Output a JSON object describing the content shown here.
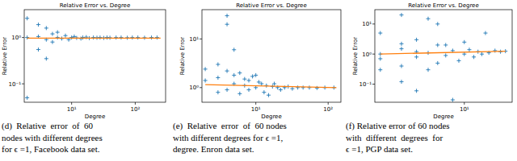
{
  "chart_data": [
    {
      "type": "scatter",
      "title": "Relative Error vs. Degree",
      "x_label": "Degree",
      "y_label": "Relative Error",
      "log": true,
      "grid": false,
      "xlim": [
        1.8,
        300
      ],
      "ylim": [
        0.04,
        4
      ],
      "xticks": [
        {
          "value": 10,
          "label": "10¹"
        },
        {
          "value": 100,
          "label": "10²"
        }
      ],
      "yticks": [
        {
          "value": 0.1,
          "label": "10⁻¹"
        },
        {
          "value": 1,
          "label": "10⁰"
        }
      ],
      "series": [
        {
          "type": "scatter",
          "marker": "+",
          "color": "#1f77b4",
          "x": [
            2,
            2,
            2,
            3,
            3,
            3,
            4,
            4,
            4,
            5,
            5,
            6,
            6,
            7,
            8,
            9,
            10,
            11,
            12,
            14,
            15,
            17,
            19,
            22,
            25,
            28,
            32,
            36,
            40,
            50,
            60,
            75,
            90,
            110,
            140,
            180,
            220
          ],
          "values": [
            2.6,
            0.05,
            1.0,
            1.9,
            0.55,
            1.05,
            1.6,
            0.35,
            0.9,
            1.2,
            0.8,
            1.0,
            1.3,
            0.95,
            1.1,
            0.9,
            1.0,
            1.05,
            0.98,
            0.95,
            1.0,
            1.02,
            0.97,
            1.0,
            0.99,
            1.0,
            0.98,
            1.0,
            0.99,
            1.0,
            1.0,
            0.99,
            1.0,
            1.0,
            0.99,
            1.0,
            1.0
          ]
        },
        {
          "type": "line",
          "color": "#ff7f0e",
          "x": [
            2,
            250
          ],
          "values": [
            0.97,
            0.97
          ]
        }
      ],
      "caption": [
        "(d)  Relative  error  of  60",
        "nodes with different degrees",
        "for ϵ =1, Facebook data set."
      ]
    },
    {
      "type": "scatter",
      "title": "Relative Error vs. Degree",
      "x_label": "Degree",
      "y_label": "Relative Error",
      "log": true,
      "grid": false,
      "xlim": [
        1.8,
        150
      ],
      "ylim": [
        0.5,
        40
      ],
      "xticks": [
        {
          "value": 10,
          "label": "10¹"
        },
        {
          "value": 100,
          "label": "10²"
        }
      ],
      "yticks": [
        {
          "value": 1,
          "label": "10⁰"
        },
        {
          "value": 10,
          "label": "10¹"
        }
      ],
      "series": [
        {
          "type": "scatter",
          "marker": "+",
          "color": "#1f77b4",
          "x": [
            2,
            2,
            3,
            3,
            3,
            4,
            4,
            4,
            4,
            5,
            5,
            5,
            6,
            6,
            7,
            7,
            8,
            8,
            9,
            10,
            10,
            11,
            12,
            13,
            14,
            15,
            17,
            18,
            20,
            22,
            25,
            28,
            32,
            38,
            45,
            55,
            70,
            90,
            120
          ],
          "values": [
            2.4,
            1.4,
            3.0,
            1.6,
            0.8,
            30,
            20,
            2.2,
            0.9,
            6.0,
            1.8,
            1.2,
            2.0,
            0.75,
            1.5,
            1.1,
            1.4,
            0.9,
            1.7,
            1.8,
            1.0,
            1.3,
            1.2,
            0.8,
            1.1,
            0.7,
            1.05,
            1.2,
            1.0,
            0.9,
            1.0,
            1.05,
            0.95,
            1.0,
            1.0,
            1.0,
            0.98,
            1.0,
            1.0
          ]
        },
        {
          "type": "line",
          "color": "#ff7f0e",
          "x": [
            2,
            130
          ],
          "values": [
            1.15,
            1.0
          ]
        }
      ],
      "caption": [
        "(e)  Relative  error  of  60 nodes",
        "with different degrees for ϵ =1,",
        "degree. Enron data set."
      ]
    },
    {
      "type": "scatter",
      "title": "Relative Error vs. Degree",
      "x_label": "Degree",
      "y_label": "Relative Error",
      "log": true,
      "grid": false,
      "xlim": [
        1.8,
        25
      ],
      "ylim": [
        0.025,
        30
      ],
      "xticks": [
        {
          "value": 10,
          "label": "10¹"
        }
      ],
      "yticks": [
        {
          "value": 0.1,
          "label": "10⁻¹"
        },
        {
          "value": 1,
          "label": "10⁰"
        },
        {
          "value": 10,
          "label": "10¹"
        }
      ],
      "series": [
        {
          "type": "scatter",
          "marker": "+",
          "color": "#1f77b4",
          "x": [
            2,
            2,
            2,
            2,
            3,
            3,
            3,
            3,
            3,
            4,
            4,
            4,
            4,
            5,
            5,
            5,
            6,
            6,
            6,
            7,
            7,
            8,
            8,
            9,
            10,
            10,
            11,
            12,
            13,
            14,
            15,
            16,
            18,
            20,
            22
          ],
          "values": [
            5.0,
            0.7,
            1.0,
            0.3,
            20,
            2.2,
            0.4,
            1.5,
            0.12,
            3.0,
            0.06,
            1.2,
            0.8,
            15,
            0.3,
            1.1,
            10,
            2.0,
            0.5,
            2.0,
            0.9,
            0.03,
            1.3,
            0.6,
            2.5,
            1.0,
            1.4,
            0.8,
            1.2,
            1.0,
            5.0,
            1.1,
            1.3,
            1.2,
            1.25
          ]
        },
        {
          "type": "line",
          "color": "#ff7f0e",
          "x": [
            2,
            22
          ],
          "values": [
            1.0,
            1.25
          ]
        }
      ],
      "caption": [
        "(f) Relative error of 60 nodes",
        "with  different  degrees  for",
        "ϵ =1, PGP data set."
      ]
    }
  ]
}
